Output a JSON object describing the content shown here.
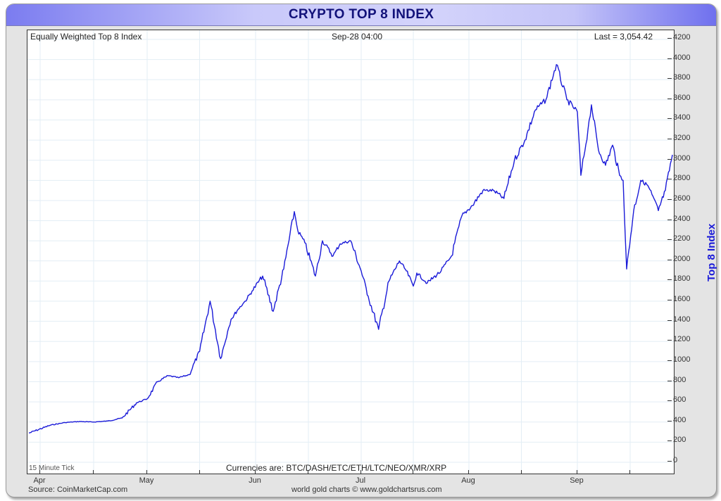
{
  "header": {
    "title": "CRYPTO TOP 8 INDEX",
    "series_name": "Equally Weighted Top 8 Index",
    "timestamp": "Sep-28  04:00",
    "last_value": "Last = 3,054.42"
  },
  "footer": {
    "tick_label": "15 Minute Tick",
    "currencies": "Currencies are: BTC/DASH/ETC/ETH/LTC/NEO/XMR/XRP",
    "source": "Source: CoinMarketCap.com",
    "credit": "world gold charts © www.goldchartsrus.com"
  },
  "colors": {
    "line": "#1a1ad8",
    "title_text": "#12127a",
    "grid": "#e3eef5"
  },
  "chart_data": {
    "type": "line",
    "title": "CRYPTO TOP 8 INDEX",
    "subtitle": "Equally Weighted Top 8 Index",
    "xlabel": "",
    "ylabel": "Top 8 Index",
    "ylim": [
      0,
      4200
    ],
    "yticks": [
      0,
      200,
      400,
      600,
      800,
      1000,
      1200,
      1400,
      1600,
      1800,
      2000,
      2200,
      2400,
      2600,
      2800,
      3000,
      3200,
      3400,
      3600,
      3800,
      4000,
      4200
    ],
    "xticks": [
      "Apr",
      "May",
      "Jun",
      "Jul",
      "Aug",
      "Sep"
    ],
    "grid": true,
    "legend": "none",
    "series": [
      {
        "name": "Equally Weighted Top 8 Index",
        "x": [
          "Apr-01",
          "Apr-04",
          "Apr-08",
          "Apr-12",
          "Apr-16",
          "Apr-20",
          "Apr-24",
          "Apr-28",
          "May-01",
          "May-04",
          "May-07",
          "May-10",
          "May-13",
          "May-16",
          "May-19",
          "May-22",
          "May-24",
          "May-25",
          "May-27",
          "May-29",
          "May-31",
          "Jun-03",
          "Jun-06",
          "Jun-09",
          "Jun-12",
          "Jun-13",
          "Jun-15",
          "Jun-18",
          "Jun-20",
          "Jun-23",
          "Jun-25",
          "Jun-28",
          "Jul-01",
          "Jul-03",
          "Jul-06",
          "Jul-09",
          "Jul-12",
          "Jul-14",
          "Jul-16",
          "Jul-17",
          "Jul-20",
          "Jul-24",
          "Jul-27",
          "Jul-30",
          "Aug-02",
          "Aug-05",
          "Aug-08",
          "Aug-11",
          "Aug-14",
          "Aug-17",
          "Aug-20",
          "Aug-23",
          "Aug-26",
          "Aug-29",
          "Sep-01",
          "Sep-02",
          "Sep-04",
          "Sep-05",
          "Sep-07",
          "Sep-09",
          "Sep-11",
          "Sep-13",
          "Sep-14",
          "Sep-15",
          "Sep-17",
          "Sep-19",
          "Sep-21",
          "Sep-24",
          "Sep-26",
          "Sep-28"
        ],
        "values": [
          290,
          370,
          395,
          405,
          400,
          410,
          440,
          590,
          630,
          800,
          860,
          840,
          870,
          1100,
          1600,
          1030,
          1300,
          1420,
          1520,
          1600,
          1700,
          1850,
          1500,
          1920,
          2490,
          2300,
          2180,
          1850,
          2200,
          2050,
          2170,
          2200,
          1900,
          1650,
          1320,
          1800,
          2000,
          1900,
          1750,
          1880,
          1780,
          1900,
          2050,
          2450,
          2550,
          2700,
          2700,
          2620,
          3000,
          3200,
          3500,
          3600,
          3950,
          3600,
          3480,
          2850,
          3300,
          3550,
          3100,
          2950,
          3150,
          2850,
          2800,
          1920,
          2500,
          2800,
          2750,
          2500,
          2700,
          3054
        ]
      }
    ]
  }
}
